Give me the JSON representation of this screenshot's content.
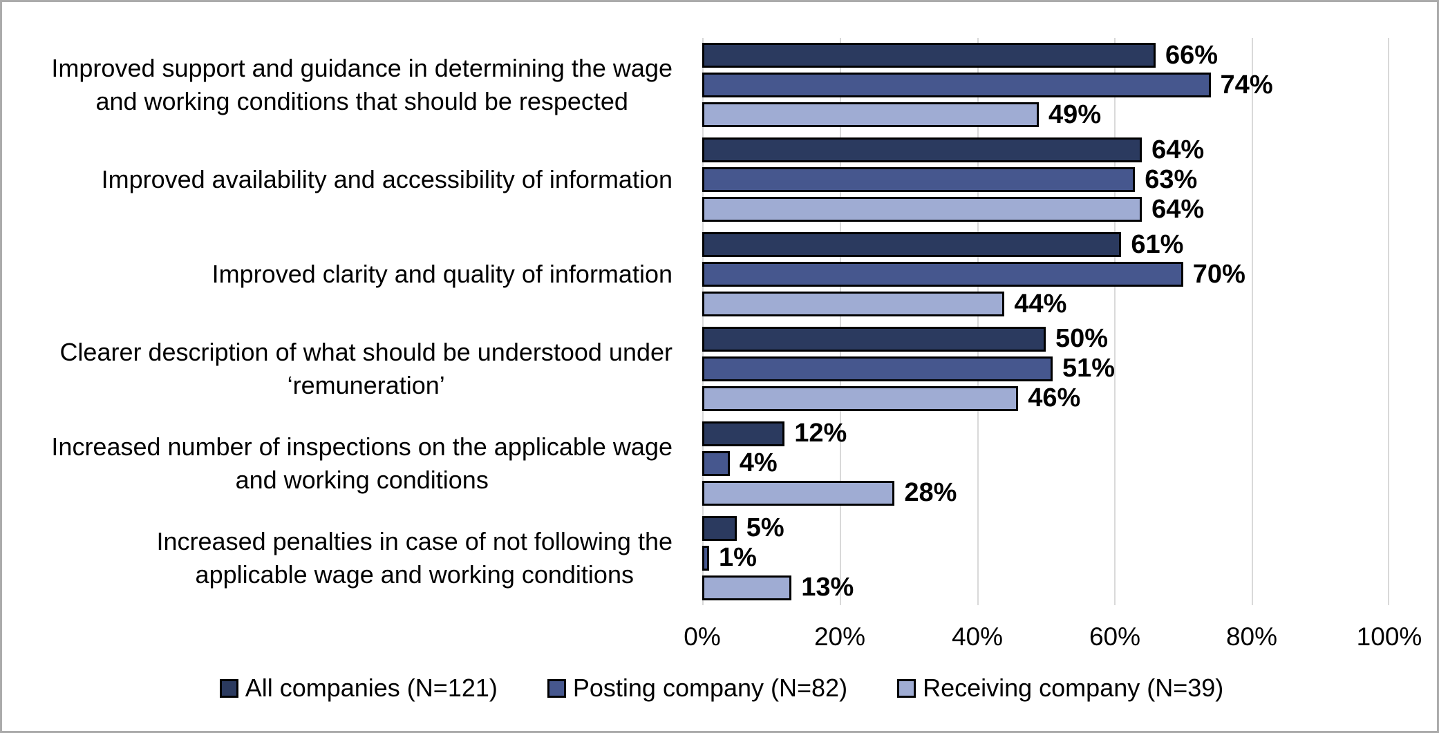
{
  "chart_data": {
    "type": "bar",
    "orientation": "horizontal",
    "title": "",
    "xlabel": "",
    "ylabel": "",
    "xlim": [
      0,
      100
    ],
    "x_ticks": [
      "0%",
      "20%",
      "40%",
      "60%",
      "80%",
      "100%"
    ],
    "grid": true,
    "legend_position": "bottom",
    "categories": [
      "Improved support and guidance in determining the wage and working conditions that should be respected",
      "Improved availability and accessibility of information",
      "Improved clarity and quality of information",
      "Clearer description of what should be understood under ‘remuneration’",
      "Increased number of inspections on the applicable wage and working conditions",
      "Increased penalties in case of not following the applicable wage and working conditions"
    ],
    "category_lines": [
      [
        "Improved support and guidance in determining the wage",
        "and working conditions that should be respected"
      ],
      [
        "Improved availability and accessibility of information"
      ],
      [
        "Improved clarity and quality of information"
      ],
      [
        "Clearer description of what should be understood under",
        "‘remuneration’"
      ],
      [
        "Increased number of inspections on the applicable wage",
        "and working conditions"
      ],
      [
        "Increased penalties in case of not following the",
        "applicable wage and working conditions"
      ]
    ],
    "series": [
      {
        "name": "All companies (N=121)",
        "color": "#2B3A5F",
        "values": [
          66,
          64,
          61,
          50,
          12,
          5
        ]
      },
      {
        "name": "Posting company (N=82)",
        "color": "#46578E",
        "values": [
          74,
          63,
          70,
          51,
          4,
          1
        ]
      },
      {
        "name": "Receiving company (N=39)",
        "color": "#9FACD3",
        "values": [
          49,
          64,
          44,
          46,
          28,
          13
        ]
      }
    ],
    "value_labels": [
      [
        "66%",
        "64%",
        "61%",
        "50%",
        "12%",
        "5%"
      ],
      [
        "74%",
        "63%",
        "70%",
        "51%",
        "4%",
        "1%"
      ],
      [
        "49%",
        "64%",
        "44%",
        "46%",
        "28%",
        "13%"
      ]
    ],
    "colors": {
      "grid": "#D9D9D9",
      "bar_border": "#000000",
      "text": "#000000",
      "frame_border": "#ABABAB",
      "background": "#FFFFFF"
    }
  }
}
